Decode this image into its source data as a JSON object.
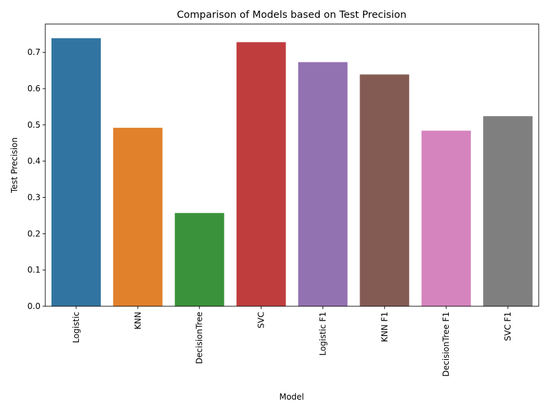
{
  "chart_data": {
    "type": "bar",
    "title": "Comparison of Models based on Test Precision",
    "xlabel": "Model",
    "ylabel": "Test Precision",
    "categories": [
      "Logistic",
      "KNN",
      "DecisionTree",
      "SVC",
      "Logistic F1",
      "KNN F1",
      "DecisionTree F1",
      "SVC F1"
    ],
    "values": [
      0.739,
      0.492,
      0.257,
      0.728,
      0.673,
      0.639,
      0.484,
      0.524
    ],
    "colors": [
      "#3274a1",
      "#e1812c",
      "#3a923a",
      "#c03d3e",
      "#9372b2",
      "#845b53",
      "#d684bd",
      "#7f7f7f"
    ],
    "ylim": [
      0,
      0.778
    ],
    "yticks": [
      0.0,
      0.1,
      0.2,
      0.3,
      0.4,
      0.5,
      0.6,
      0.7
    ],
    "ytick_labels": [
      "0.0",
      "0.1",
      "0.2",
      "0.3",
      "0.4",
      "0.5",
      "0.6",
      "0.7"
    ],
    "grid": false,
    "legend": "none"
  }
}
